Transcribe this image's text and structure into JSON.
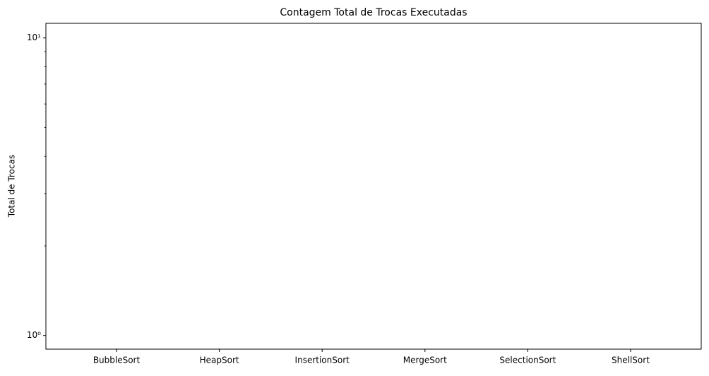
{
  "chart_data": {
    "type": "bar",
    "title": "Contagem Total de Trocas Executadas",
    "ylabel": "Total de Trocas",
    "categories": [
      "BubbleSort",
      "HeapSort",
      "InsertionSort",
      "MergeSort",
      "SelectionSort",
      "ShellSort"
    ],
    "values": [
      0,
      0,
      0,
      0,
      0,
      0
    ],
    "color": "#1f77b4",
    "ylim": [
      0.9,
      11.2
    ],
    "log_scale": true,
    "yticks": [
      {
        "value": 1,
        "label": "10⁰"
      },
      {
        "value": 10,
        "label": "10¹"
      }
    ],
    "yminorticks": [
      2,
      3,
      4,
      5,
      6,
      7,
      8,
      9
    ],
    "grid": false
  }
}
